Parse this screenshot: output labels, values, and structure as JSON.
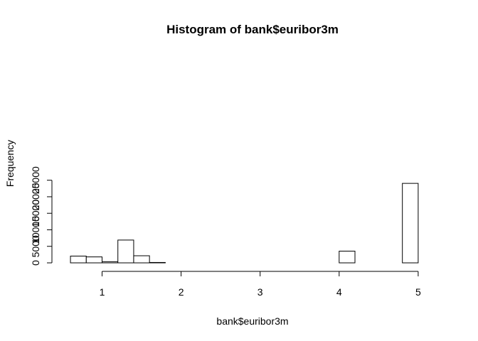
{
  "chart_data": {
    "type": "bar",
    "title": "Histogram of bank$euribor3m",
    "xlabel": "bank$euribor3m",
    "ylabel": "Frequency",
    "bins": [
      {
        "x0": 0.6,
        "x1": 0.8,
        "count": 2050
      },
      {
        "x0": 0.8,
        "x1": 1.0,
        "count": 1800
      },
      {
        "x0": 1.0,
        "x1": 1.2,
        "count": 350
      },
      {
        "x0": 1.2,
        "x1": 1.4,
        "count": 6900
      },
      {
        "x0": 1.4,
        "x1": 1.6,
        "count": 2150
      },
      {
        "x0": 1.6,
        "x1": 1.8,
        "count": 120
      },
      {
        "x0": 1.8,
        "x1": 2.0,
        "count": 0
      },
      {
        "x0": 2.0,
        "x1": 2.2,
        "count": 0
      },
      {
        "x0": 2.2,
        "x1": 2.4,
        "count": 0
      },
      {
        "x0": 2.4,
        "x1": 2.6,
        "count": 0
      },
      {
        "x0": 2.6,
        "x1": 2.8,
        "count": 0
      },
      {
        "x0": 2.8,
        "x1": 3.0,
        "count": 0
      },
      {
        "x0": 3.0,
        "x1": 3.2,
        "count": 0
      },
      {
        "x0": 3.2,
        "x1": 3.4,
        "count": 0
      },
      {
        "x0": 3.4,
        "x1": 3.6,
        "count": 0
      },
      {
        "x0": 3.6,
        "x1": 3.8,
        "count": 0
      },
      {
        "x0": 3.8,
        "x1": 4.0,
        "count": 0
      },
      {
        "x0": 4.0,
        "x1": 4.2,
        "count": 3550
      },
      {
        "x0": 4.2,
        "x1": 4.4,
        "count": 0
      },
      {
        "x0": 4.4,
        "x1": 4.6,
        "count": 0
      },
      {
        "x0": 4.6,
        "x1": 4.8,
        "count": 0
      },
      {
        "x0": 4.8,
        "x1": 5.0,
        "count": 24050
      }
    ],
    "xticks": [
      1,
      2,
      3,
      4,
      5
    ],
    "yticks": [
      0,
      5000,
      10000,
      15000,
      20000,
      25000
    ],
    "xlim": [
      0.6,
      5.2
    ],
    "ylim": [
      0,
      25000
    ],
    "grid": false
  }
}
